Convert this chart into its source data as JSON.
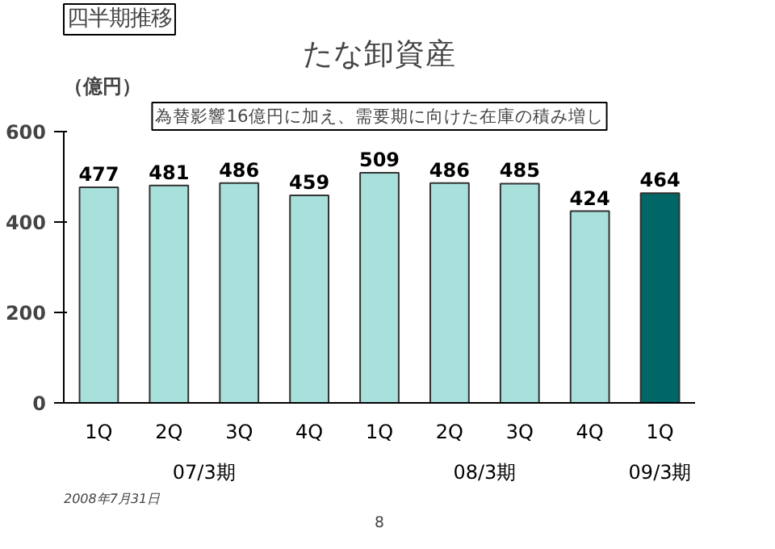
{
  "chart_data": {
    "type": "bar",
    "title": "たな卸資産",
    "subtitle": "四半期推移",
    "ylabel": "（億円）",
    "categories": [
      "1Q",
      "2Q",
      "3Q",
      "4Q",
      "1Q",
      "2Q",
      "3Q",
      "4Q",
      "1Q"
    ],
    "values": [
      477,
      481,
      486,
      459,
      509,
      486,
      485,
      424,
      464
    ],
    "colors": [
      "#a8e0dc",
      "#a8e0dc",
      "#a8e0dc",
      "#a8e0dc",
      "#a8e0dc",
      "#a8e0dc",
      "#a8e0dc",
      "#a8e0dc",
      "#006666"
    ],
    "ylim": [
      0,
      600
    ],
    "yticks": [
      0,
      200,
      400,
      600
    ],
    "grid": false,
    "data_labels": true,
    "annotations": [
      "為替影響16億円に加え、需要期に向けた在庫の積み増し",
      "07/3期",
      "08/3期",
      "09/3期",
      "2008年7月31日",
      "8"
    ]
  }
}
